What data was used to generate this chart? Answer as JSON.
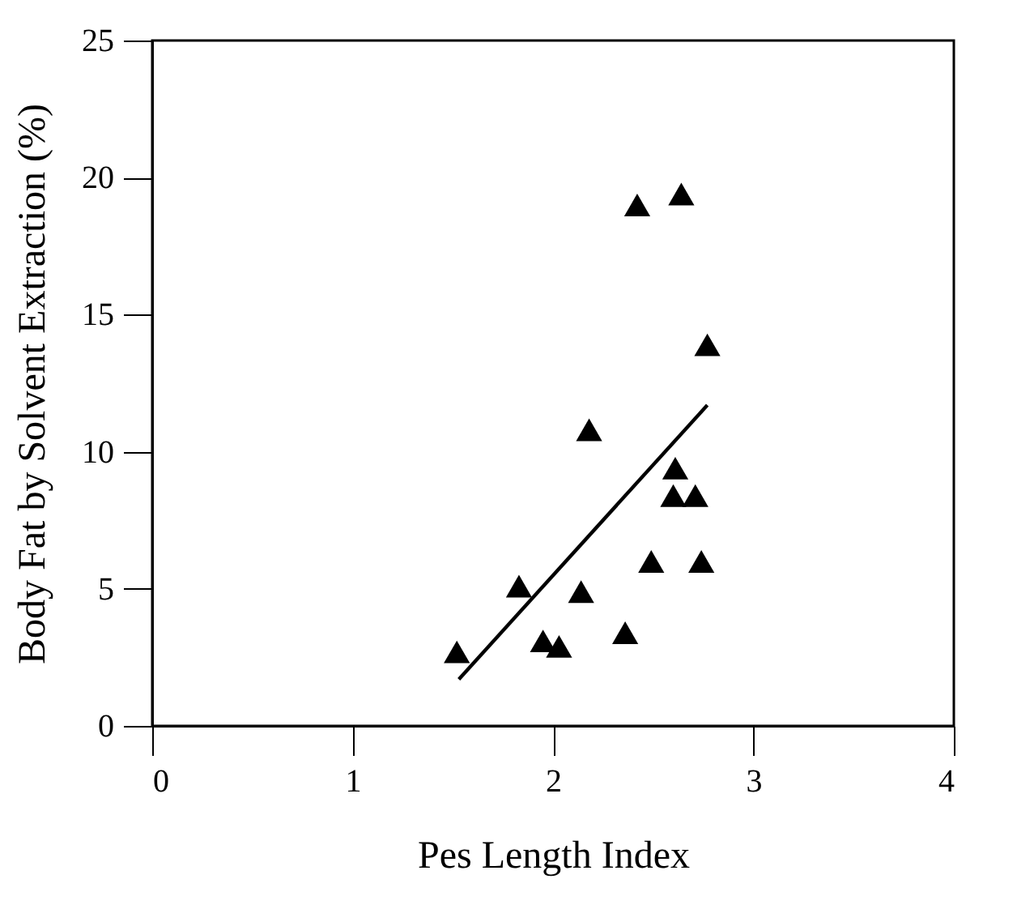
{
  "chart_data": {
    "type": "scatter",
    "xlabel": "Pes Length Index",
    "ylabel": "Body Fat by Solvent Extraction (%)",
    "xlim": [
      0,
      4
    ],
    "xticks": [
      0,
      1,
      2,
      3,
      4
    ],
    "ylim": [
      0,
      25
    ],
    "yticks": [
      0,
      5,
      10,
      15,
      20,
      25
    ],
    "series": [
      {
        "color": "#000000",
        "marker": "triangle",
        "x": [
          1.52,
          1.83,
          1.95,
          2.03,
          2.14,
          2.18,
          2.36,
          2.42,
          2.49,
          2.64,
          2.61,
          2.6,
          2.71,
          2.74,
          2.77
        ],
        "values": [
          2.7,
          5.1,
          3.1,
          2.9,
          4.9,
          10.8,
          3.4,
          19.0,
          6.0,
          19.4,
          9.4,
          8.4,
          8.4,
          6.0,
          13.9
        ]
      },
      {
        "type": "line",
        "color": "#000000",
        "x": [
          1.53,
          2.77
        ],
        "values": [
          1.7,
          11.7
        ]
      }
    ]
  }
}
